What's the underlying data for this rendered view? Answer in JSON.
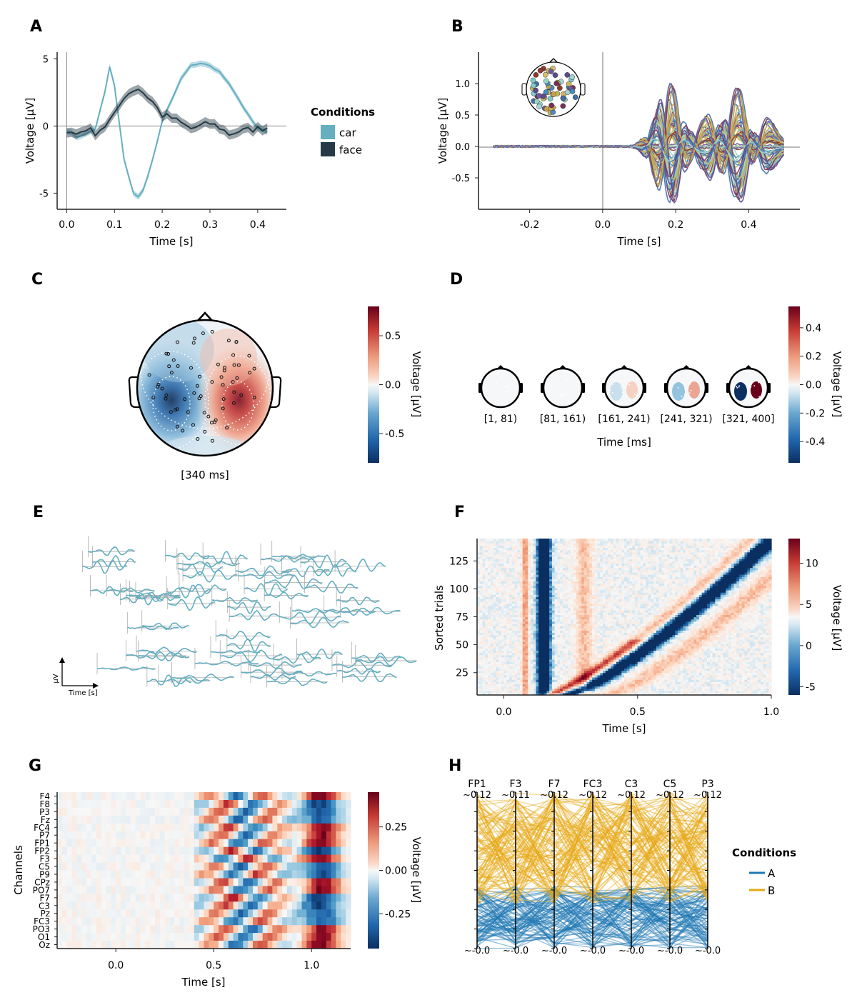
{
  "colors": {
    "car": "#65afc1",
    "face": "#253a45",
    "A": "#1f77b4",
    "B": "#e6a817",
    "axis": "#222222"
  },
  "panels": {
    "A": {
      "letter": "A"
    },
    "B": {
      "letter": "B"
    },
    "C": {
      "letter": "C"
    },
    "D": {
      "letter": "D"
    },
    "E": {
      "letter": "E"
    },
    "F": {
      "letter": "F"
    },
    "G": {
      "letter": "G"
    },
    "H": {
      "letter": "H"
    }
  },
  "chart_data": [
    {
      "panel": "A",
      "type": "line",
      "xlabel": "Time [s]",
      "ylabel": "Voltage [μV]",
      "xticks": [
        "0.0",
        "0.1",
        "0.2",
        "0.3",
        "0.4"
      ],
      "yticks": [
        "5",
        "0",
        "-5"
      ],
      "xlim": [
        -0.02,
        0.46
      ],
      "ylim": [
        -6.2,
        5.5
      ],
      "legend_title": "Conditions",
      "legend": [
        "car",
        "face"
      ],
      "series": [
        {
          "name": "car",
          "x": [
            0.0,
            0.02,
            0.04,
            0.06,
            0.08,
            0.09,
            0.1,
            0.12,
            0.14,
            0.15,
            0.16,
            0.18,
            0.2,
            0.22,
            0.24,
            0.26,
            0.28,
            0.3,
            0.32,
            0.34,
            0.36,
            0.38,
            0.4,
            0.42
          ],
          "y": [
            -0.3,
            -0.8,
            -0.6,
            -0.2,
            2.5,
            4.4,
            3.0,
            -2.5,
            -5.0,
            -5.3,
            -4.8,
            -2.5,
            0.3,
            2.0,
            3.5,
            4.5,
            4.6,
            4.5,
            4.0,
            3.2,
            2.0,
            0.8,
            -0.2,
            -0.4
          ]
        },
        {
          "name": "face",
          "x": [
            0.0,
            0.02,
            0.04,
            0.06,
            0.08,
            0.1,
            0.12,
            0.14,
            0.15,
            0.16,
            0.18,
            0.2,
            0.22,
            0.24,
            0.26,
            0.28,
            0.3,
            0.32,
            0.34,
            0.36,
            0.38,
            0.4,
            0.42
          ],
          "y": [
            -0.4,
            -0.6,
            -0.2,
            -0.5,
            0.0,
            0.8,
            2.2,
            2.7,
            2.8,
            2.5,
            1.8,
            0.8,
            0.6,
            0.2,
            -0.2,
            0.0,
            0.2,
            -0.1,
            -0.6,
            -0.4,
            -0.3,
            -0.2,
            -0.1
          ]
        }
      ]
    },
    {
      "panel": "B",
      "type": "line",
      "xlabel": "Time [s]",
      "ylabel": "Voltage [μV]",
      "xticks": [
        "-0.2",
        "0.0",
        "0.2",
        "0.4"
      ],
      "yticks": [
        "1.0",
        "0.5",
        "0.0",
        "-0.5"
      ],
      "xlim": [
        -0.34,
        0.54
      ],
      "ylim": [
        -1.0,
        1.5
      ],
      "note": "butterfly plot of all channels colored by scalp position"
    },
    {
      "panel": "C",
      "type": "heatmap",
      "title": "[340 ms]",
      "colorbar_label": "Voltage [μV]",
      "colorbar_ticks": [
        "0.5",
        "0.0",
        "-0.5"
      ],
      "clim": [
        -0.8,
        0.8
      ]
    },
    {
      "panel": "D",
      "type": "heatmap",
      "xlabel": "Time [ms]",
      "labels": [
        "[1, 81)",
        "[81, 161)",
        "[161, 241)",
        "[241, 321)",
        "[321, 400]"
      ],
      "intensity": [
        0.05,
        0.08,
        0.35,
        0.5,
        1.0
      ],
      "colorbar_label": "Voltage [μV]",
      "colorbar_ticks": [
        "0.4",
        "0.2",
        "0.0",
        "-0.2",
        "-0.4"
      ],
      "clim": [
        -0.55,
        0.55
      ]
    },
    {
      "panel": "E",
      "type": "line",
      "xlabel": "Time [s]",
      "ylabel": "μV",
      "note": "channel ERPs plotted at electrode positions"
    },
    {
      "panel": "F",
      "type": "heatmap",
      "xlabel": "Time [s]",
      "ylabel": "Sorted trials",
      "xticks": [
        "0.0",
        "0.5",
        "1.0"
      ],
      "yticks": [
        "25",
        "50",
        "75",
        "100",
        "125"
      ],
      "xlim": [
        -0.1,
        1.0
      ],
      "ylim": [
        5,
        145
      ],
      "colorbar_label": "Voltage [μV]",
      "colorbar_ticks": [
        "10",
        "5",
        "0",
        "-5"
      ],
      "clim": [
        -6,
        13
      ]
    },
    {
      "panel": "G",
      "type": "heatmap",
      "xlabel": "Time [s]",
      "ylabel": "Channels",
      "xticks": [
        "0.0",
        "0.5",
        "1.0"
      ],
      "xlim": [
        -0.3,
        1.2
      ],
      "channels": [
        "F4",
        "F8",
        "P3",
        "Fz",
        "FC4",
        "P7",
        "FP1",
        "FP2",
        "F3",
        "C5",
        "P9",
        "CPz",
        "PO7",
        "F7",
        "C3",
        "Pz",
        "FC3",
        "PO3",
        "O1",
        "Oz"
      ],
      "colorbar_label": "Voltage [μV]",
      "colorbar_ticks": [
        "0.25",
        "0.00",
        "-0.25"
      ],
      "clim": [
        -0.45,
        0.45
      ]
    },
    {
      "panel": "H",
      "type": "line",
      "axes": [
        "FP1",
        "F3",
        "F7",
        "FC3",
        "C3",
        "C5",
        "P3"
      ],
      "top_labels": [
        "~0.12",
        "~0.11",
        "~0.12",
        "~0.12",
        "~0.12",
        "~0.12",
        "~0.12"
      ],
      "bottom_labels": [
        "~-0.0",
        "~-0.0",
        "~-0.0",
        "~-0.0",
        "~-0.0",
        "~-0.0",
        "~-0.0"
      ],
      "legend_title": "Conditions",
      "legend": [
        "A",
        "B"
      ],
      "note": "parallel coordinates plot"
    }
  ]
}
